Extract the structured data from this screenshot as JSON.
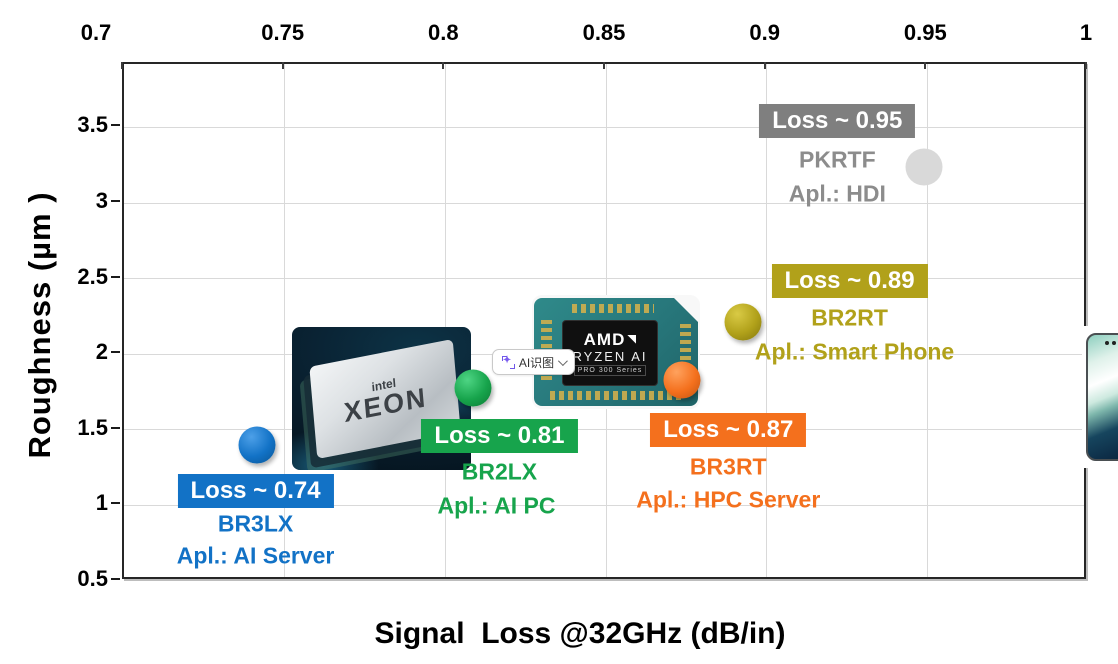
{
  "page": {
    "background": "#ffffff",
    "frame_color": "#262626",
    "grid_color": "#d9d9d9"
  },
  "chart_data": {
    "type": "scatter",
    "title": "",
    "xlabel": "Signal  Loss @32GHz (dB/in)",
    "ylabel": "Roughness (µm )",
    "xlim": [
      0.7,
      1.0
    ],
    "ylim": [
      0.5,
      3.92
    ],
    "x_axis_position": "top",
    "grid": true,
    "legend_position": "none",
    "x_ticks": [
      0.7,
      0.75,
      0.8,
      0.85,
      0.9,
      0.95,
      1
    ],
    "x_tick_labels": [
      "0.7",
      "0.75",
      "0.8",
      "0.85",
      "0.9",
      "0.95",
      "1"
    ],
    "y_ticks": [
      0.5,
      1,
      1.5,
      2,
      2.5,
      3,
      3.5
    ],
    "y_tick_labels": [
      "0.5",
      "1",
      "1.5",
      "2",
      "2.5",
      "3",
      "3.5"
    ],
    "points": [
      {
        "name": "BR3LX",
        "x": 0.74,
        "y": 1.4,
        "loss_badge": "Loss ~ 0.74",
        "application": "Apl.: AI Server",
        "color": "#1272c6",
        "color_light": "#4da0e8",
        "color_dark": "#0a5595",
        "text_color": "#1272c6",
        "dot_style": "gloss"
      },
      {
        "name": "BR2LX",
        "x": 0.81,
        "y": 1.78,
        "loss_badge": "Loss ~ 0.81",
        "application": "Apl.: AI PC",
        "color": "#17a44c",
        "color_light": "#4ed584",
        "color_dark": "#0c7a33",
        "text_color": "#17a44c",
        "dot_style": "gloss"
      },
      {
        "name": "BR3RT",
        "x": 0.87,
        "y": 1.83,
        "loss_badge": "Loss ~ 0.87",
        "application": "Apl.: HPC Server",
        "color": "#f4701d",
        "color_light": "#ffa25e",
        "color_dark": "#bf5311",
        "text_color": "#f4701d",
        "dot_style": "gloss"
      },
      {
        "name": "BR2RT",
        "x": 0.89,
        "y": 2.2,
        "loss_badge": "Loss ~ 0.89",
        "application": "Apl.: Smart Phone",
        "color": "#b1a11a",
        "color_light": "#d9ca45",
        "color_dark": "#82760e",
        "text_color": "#b1a11a",
        "dot_style": "gloss"
      },
      {
        "name": "PKRTF",
        "x": 0.95,
        "y": 3.2,
        "loss_badge": "Loss ~ 0.95",
        "application": "Apl.: HDI",
        "color": "#7f7f7f",
        "color_light": "#d9d9d9",
        "color_dark": "#d9d9d9",
        "text_color": "#8c8c8c",
        "dot_style": "flat"
      }
    ]
  },
  "overlay_badge": {
    "label": "AI识图",
    "icon": "sparkle-viewfinder-icon",
    "chevron": "down"
  },
  "images": {
    "intel": {
      "alt": "intel-xeon-processor-photo",
      "brand": "intel",
      "product": "XEON"
    },
    "amd": {
      "alt": "amd-ryzen-ai-chip-photo",
      "brand": "AMD",
      "line1": "RYZEN AI",
      "line2": "PRO 300 Series"
    },
    "phone": {
      "alt": "smartphone-front-and-back-photo"
    }
  }
}
